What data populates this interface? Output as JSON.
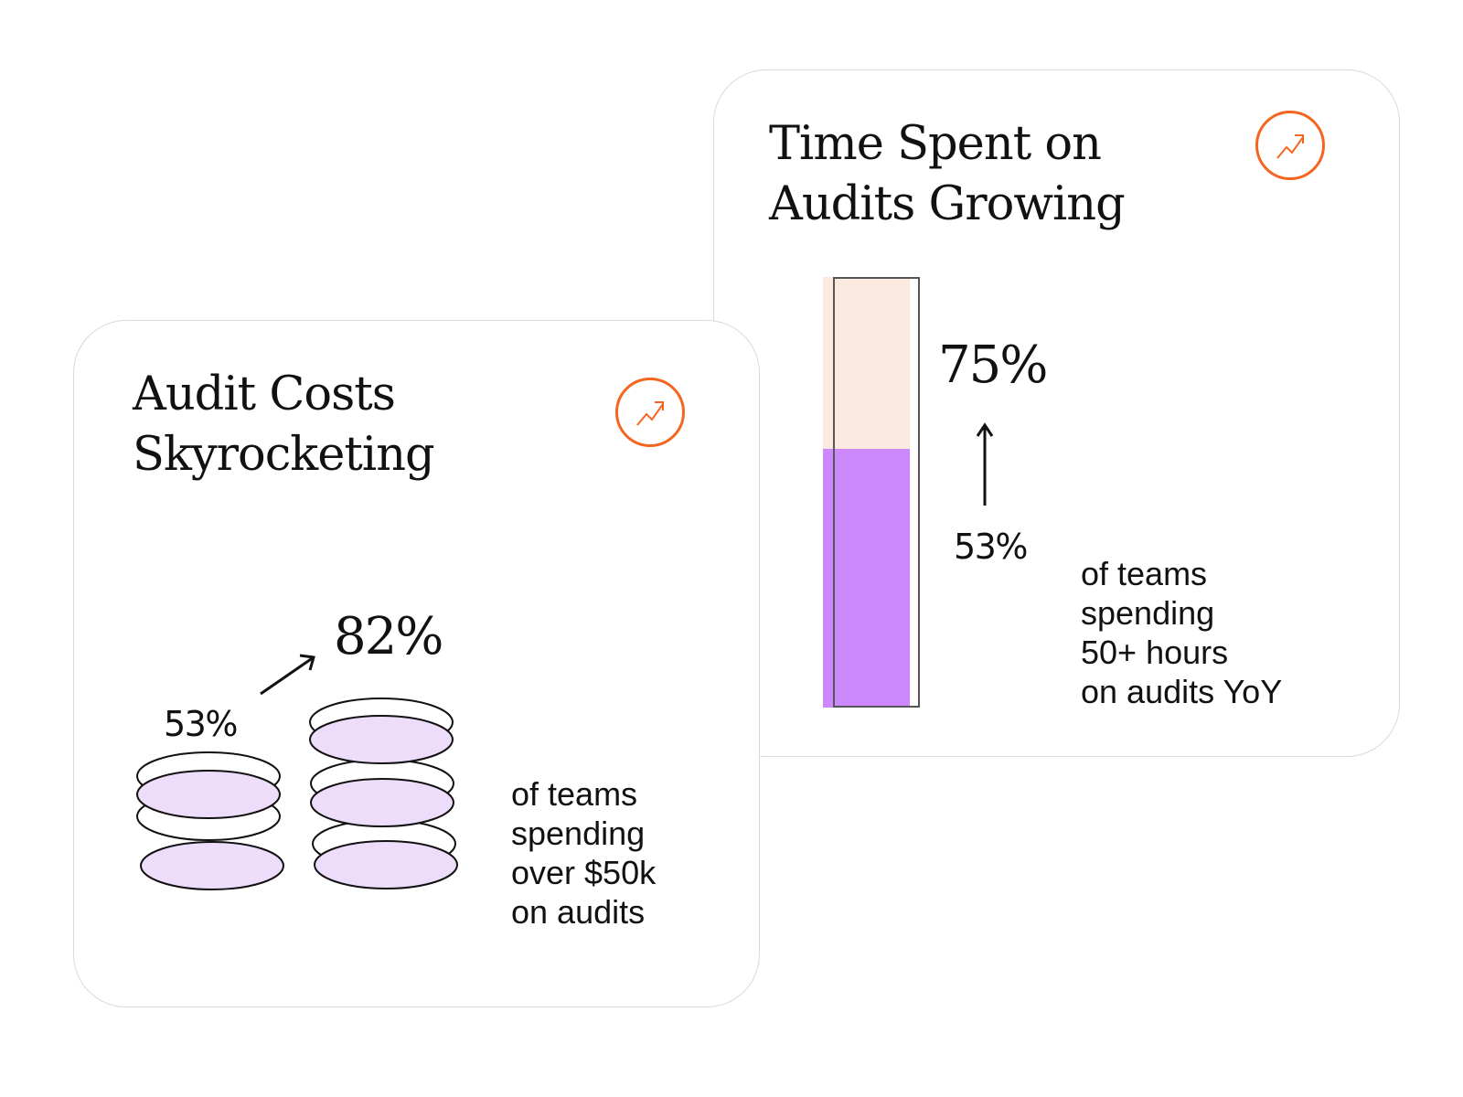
{
  "colors": {
    "accent": "#f4661f",
    "bar_fill": "#cc88fc",
    "bar_background": "#fce9df",
    "coin_fill": "#eedcfb",
    "card_border": "#d9d9d9",
    "text": "#111111"
  },
  "time_card": {
    "title_lines": [
      "Time Spent on",
      "Audits Growing"
    ],
    "icon": "trending-up-icon",
    "from_value": "53%",
    "to_value": "75%",
    "bar_from_fraction": 0.6,
    "bar_to_fraction": 1.0,
    "description_lines": [
      "of teams",
      "spending",
      "50+ hours",
      "on audits YoY"
    ]
  },
  "cost_card": {
    "title_lines": [
      "Audit Costs",
      "Skyrocketing"
    ],
    "icon": "trending-up-icon",
    "from_value": "53%",
    "to_value": "82%",
    "description_lines": [
      "of teams",
      "spending",
      "over $50k",
      "on audits"
    ]
  }
}
